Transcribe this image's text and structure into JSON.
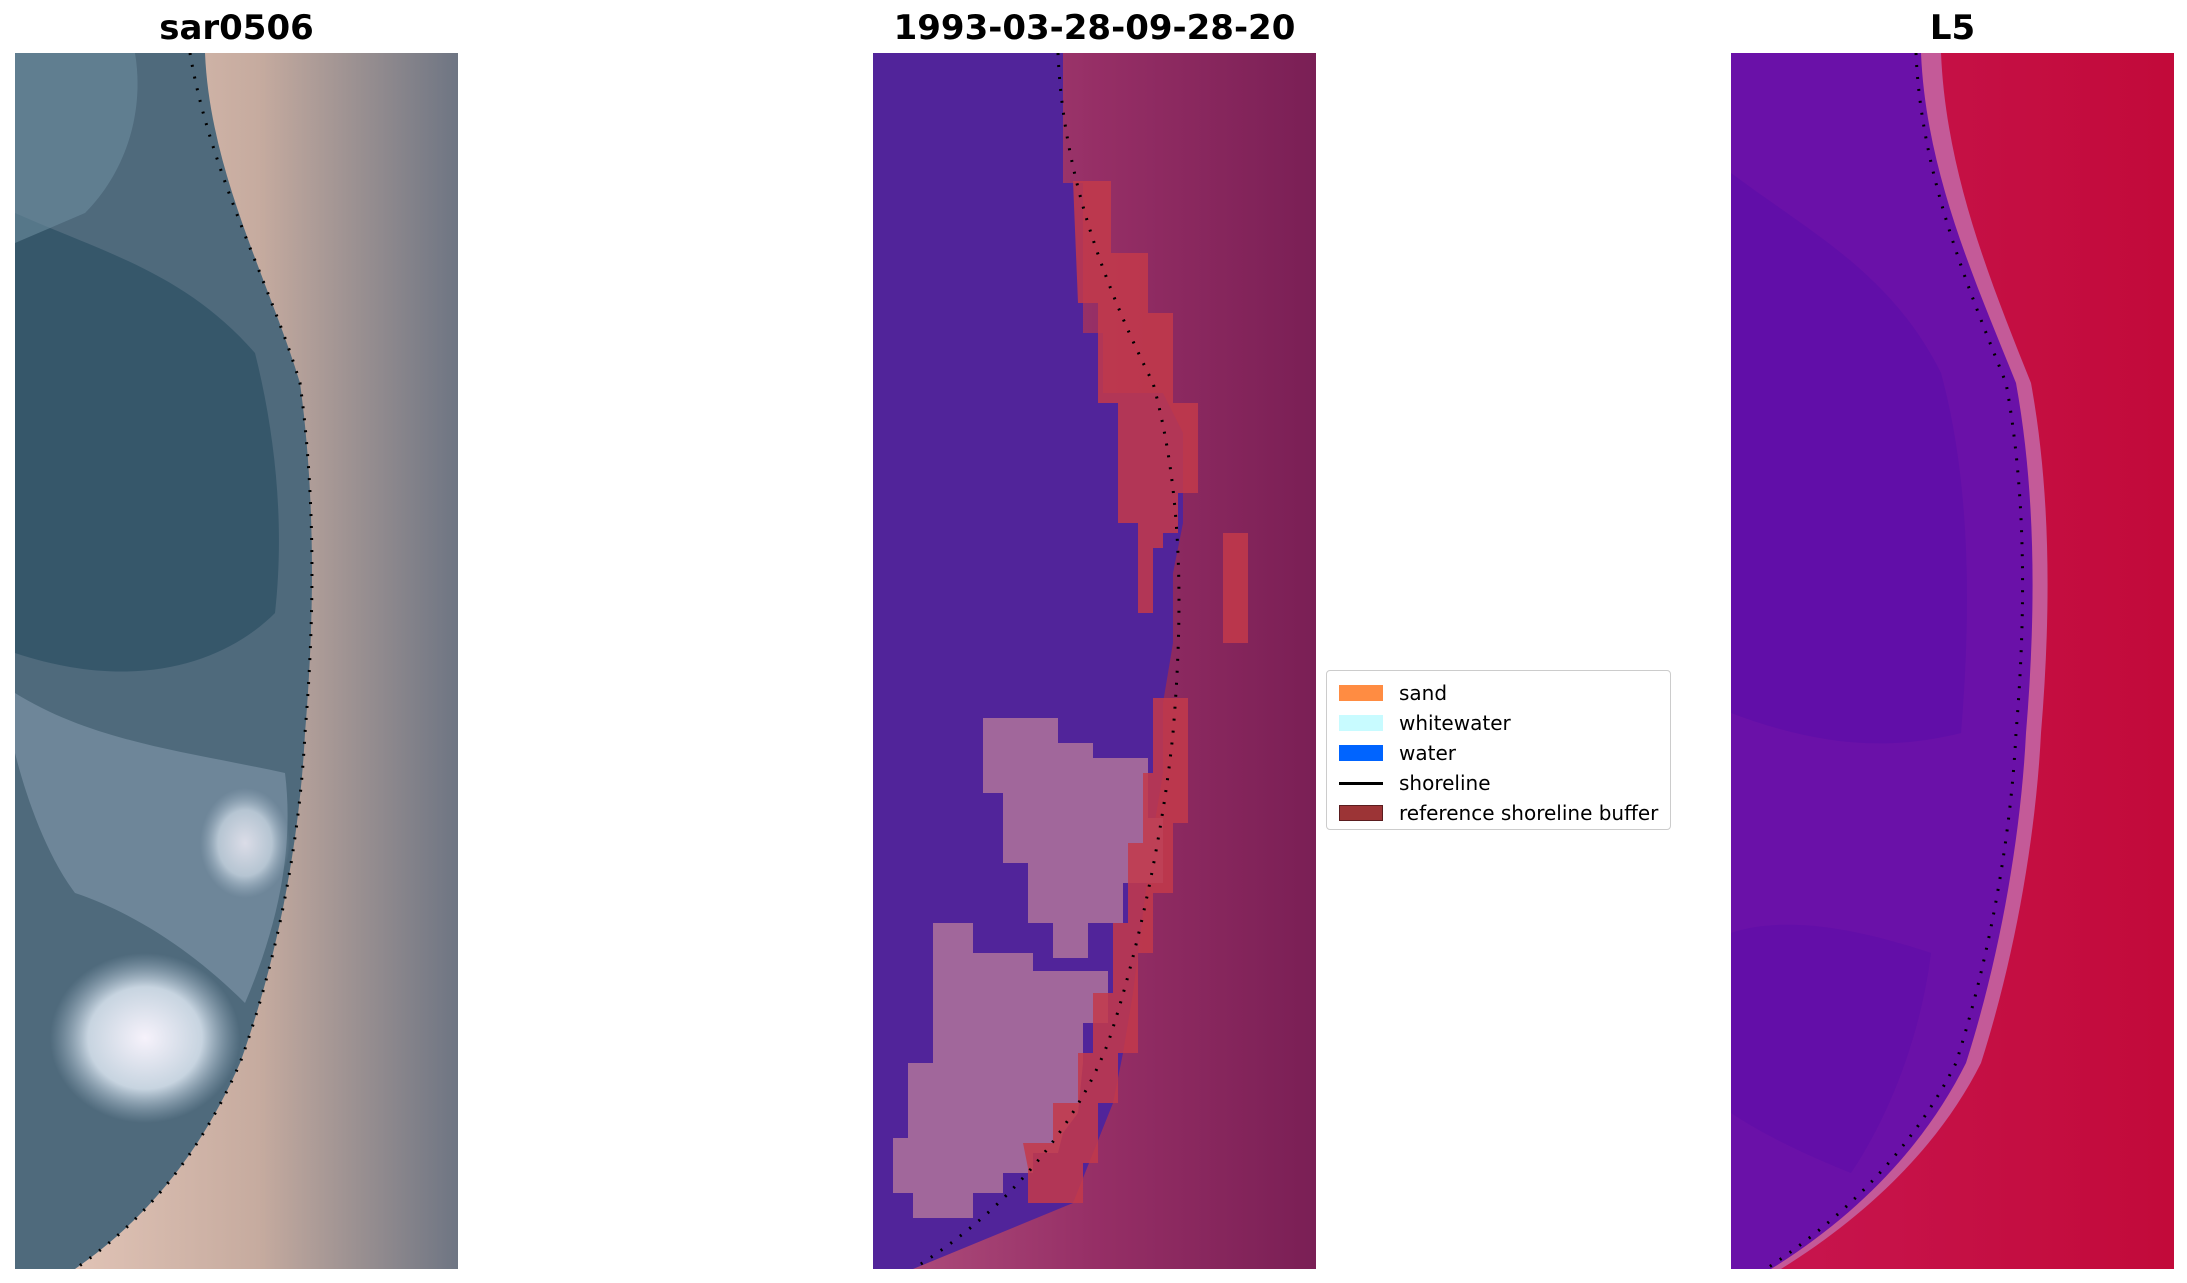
{
  "panels": [
    {
      "title": "sar0506",
      "kind": "rgb"
    },
    {
      "title": "1993-03-28-09-28-20",
      "kind": "classified"
    },
    {
      "title": "L5",
      "kind": "index"
    }
  ],
  "legend": {
    "items": [
      {
        "label": "sand",
        "color": "#ff8c42",
        "icon": "color-swatch"
      },
      {
        "label": "whitewater",
        "color": "#c8fbff",
        "icon": "color-swatch"
      },
      {
        "label": "water",
        "color": "#0064ff",
        "icon": "color-swatch"
      },
      {
        "label": "shoreline",
        "color": "#000000",
        "icon": "line-sample"
      },
      {
        "label": "reference shoreline buffer",
        "color": "#9c3436",
        "icon": "color-swatch"
      }
    ]
  },
  "colors": {
    "water_class": "#51249a",
    "whitewater_class": "#a1679b",
    "sand_class": "#8f2f66",
    "buffer_fill": "#c33a4a",
    "index_low": "#5c0da8",
    "index_high": "#c20a3a"
  }
}
